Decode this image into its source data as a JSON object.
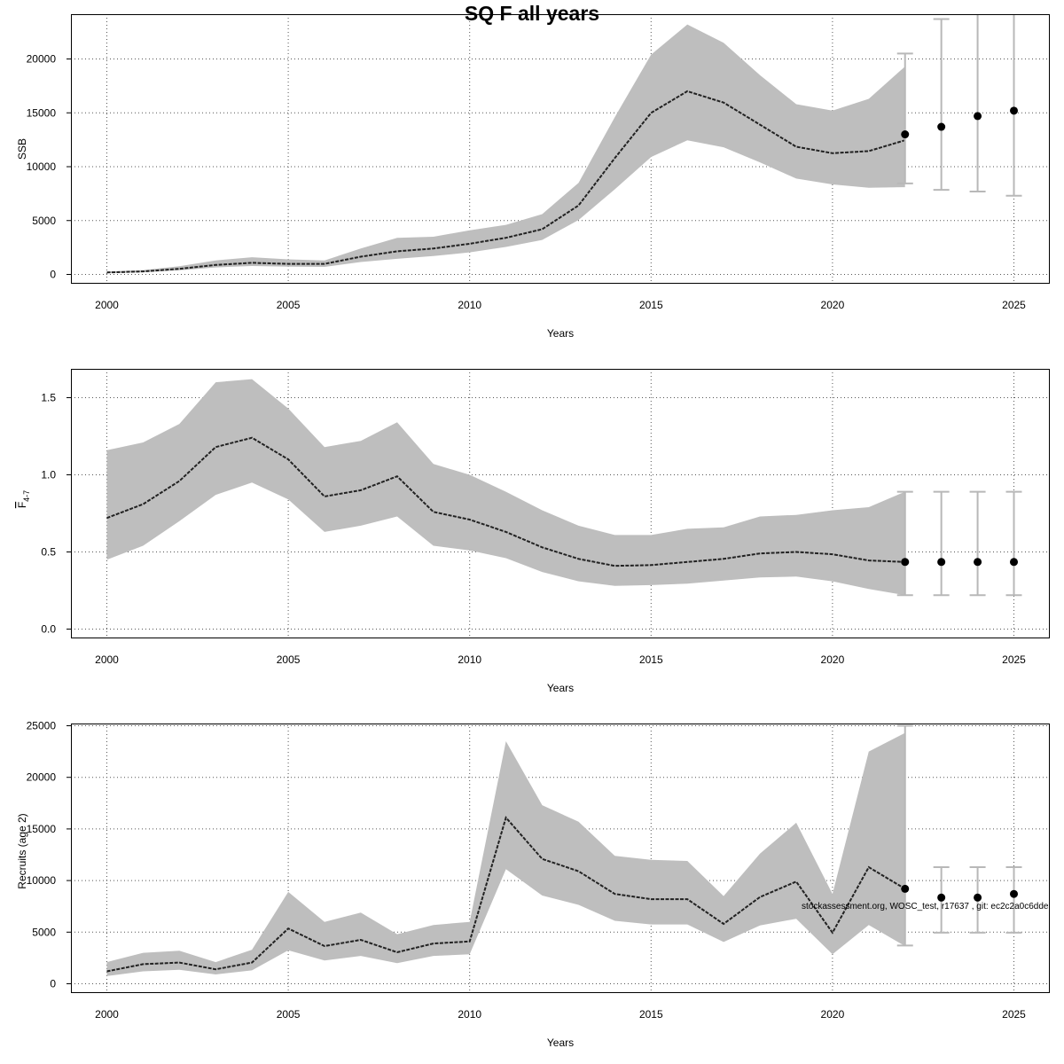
{
  "title": "SQ F all years",
  "credit": "stockassessment.org, WOSC_test, r17637 , git: ec2c2a0c6dde",
  "colors": {
    "band": "#bebebe",
    "line": "#222222",
    "errorbar": "#b8b8b8",
    "point": "#000000",
    "grid": "#555555"
  },
  "chart_data": [
    {
      "type": "area",
      "name": "SSB",
      "xlabel": "Years",
      "ylabel": "SSB",
      "xlim": [
        2000,
        2025
      ],
      "ylim": [
        0,
        24000
      ],
      "xticks": [
        2000,
        2005,
        2010,
        2015,
        2020,
        2025
      ],
      "yticks": [
        0,
        5000,
        10000,
        15000,
        20000
      ],
      "ytick_labels": [
        "0",
        "5000",
        "10000",
        "15000",
        "20000"
      ],
      "series": [
        {
          "role": "estimate",
          "x": [
            2000,
            2001,
            2002,
            2003,
            2004,
            2005,
            2006,
            2007,
            2008,
            2009,
            2010,
            2011,
            2012,
            2013,
            2014,
            2015,
            2016,
            2017,
            2018,
            2019,
            2020,
            2021,
            2022
          ],
          "values": [
            180,
            280,
            520,
            880,
            1080,
            980,
            980,
            1650,
            2150,
            2400,
            2850,
            3400,
            4200,
            6400,
            10800,
            15000,
            17000,
            15950,
            13900,
            11850,
            11250,
            11450,
            12450
          ],
          "lower": [
            120,
            200,
            380,
            650,
            780,
            720,
            700,
            1150,
            1450,
            1700,
            2050,
            2550,
            3200,
            5050,
            7900,
            10900,
            12450,
            11800,
            10400,
            8900,
            8350,
            8050,
            8100
          ],
          "upper": [
            260,
            400,
            760,
            1300,
            1600,
            1400,
            1300,
            2400,
            3400,
            3500,
            4100,
            4600,
            5600,
            8500,
            14600,
            20400,
            23200,
            21500,
            18500,
            15800,
            15200,
            16300,
            19300
          ]
        },
        {
          "role": "forecast",
          "x": [
            2022,
            2023,
            2024,
            2025
          ],
          "values": [
            13000,
            13700,
            14700,
            15200
          ],
          "lower": [
            8450,
            7850,
            7700,
            7300
          ],
          "upper": [
            20500,
            23700,
            25500,
            27000
          ]
        }
      ]
    },
    {
      "type": "area",
      "name": "F",
      "xlabel": "Years",
      "ylabel": "F",
      "ylabel_sub": "4-7",
      "xlim": [
        2000,
        2025
      ],
      "ylim": [
        0,
        1.6
      ],
      "xticks": [
        2000,
        2005,
        2010,
        2015,
        2020,
        2025
      ],
      "yticks": [
        0,
        0.5,
        1.0,
        1.5
      ],
      "ytick_labels": [
        "0.0",
        "0.5",
        "1.0",
        "1.5"
      ],
      "series": [
        {
          "role": "estimate",
          "x": [
            2000,
            2001,
            2002,
            2003,
            2004,
            2005,
            2006,
            2007,
            2008,
            2009,
            2010,
            2011,
            2012,
            2013,
            2014,
            2015,
            2016,
            2017,
            2018,
            2019,
            2020,
            2021,
            2022
          ],
          "values": [
            0.72,
            0.81,
            0.96,
            1.18,
            1.24,
            1.1,
            0.86,
            0.9,
            0.99,
            0.76,
            0.71,
            0.63,
            0.53,
            0.455,
            0.41,
            0.415,
            0.435,
            0.455,
            0.49,
            0.5,
            0.485,
            0.445,
            0.435
          ],
          "lower": [
            0.45,
            0.54,
            0.7,
            0.87,
            0.95,
            0.84,
            0.63,
            0.67,
            0.73,
            0.54,
            0.51,
            0.46,
            0.37,
            0.31,
            0.28,
            0.285,
            0.295,
            0.315,
            0.335,
            0.34,
            0.31,
            0.26,
            0.22
          ],
          "upper": [
            1.16,
            1.21,
            1.33,
            1.6,
            1.62,
            1.43,
            1.18,
            1.22,
            1.34,
            1.07,
            1.0,
            0.89,
            0.77,
            0.67,
            0.61,
            0.61,
            0.65,
            0.66,
            0.73,
            0.74,
            0.77,
            0.79,
            0.89
          ]
        },
        {
          "role": "forecast",
          "x": [
            2022,
            2023,
            2024,
            2025
          ],
          "values": [
            0.435,
            0.435,
            0.435,
            0.435
          ],
          "lower": [
            0.22,
            0.22,
            0.22,
            0.22
          ],
          "upper": [
            0.89,
            0.89,
            0.89,
            0.89
          ]
        }
      ]
    },
    {
      "type": "area",
      "name": "Recruits (age 2)",
      "xlabel": "Years",
      "ylabel": "Recruits (age 2)",
      "xlim": [
        2000,
        2025
      ],
      "ylim": [
        0,
        25000
      ],
      "xticks": [
        2000,
        2005,
        2010,
        2015,
        2020,
        2025
      ],
      "yticks": [
        0,
        5000,
        10000,
        15000,
        20000,
        25000
      ],
      "ytick_labels": [
        "0",
        "5000",
        "10000",
        "15000",
        "20000",
        "25000"
      ],
      "series": [
        {
          "role": "estimate",
          "x": [
            2000,
            2001,
            2002,
            2003,
            2004,
            2005,
            2006,
            2007,
            2008,
            2009,
            2010,
            2011,
            2012,
            2013,
            2014,
            2015,
            2016,
            2017,
            2018,
            2019,
            2020,
            2021,
            2022
          ],
          "values": [
            1200,
            1900,
            2050,
            1400,
            2050,
            5350,
            3650,
            4250,
            3050,
            3900,
            4100,
            16100,
            12100,
            10900,
            8700,
            8200,
            8200,
            5800,
            8400,
            9900,
            4950,
            11300,
            9200
          ],
          "lower": [
            750,
            1200,
            1350,
            900,
            1300,
            3250,
            2250,
            2700,
            2000,
            2700,
            2850,
            11100,
            8550,
            7650,
            6100,
            5750,
            5750,
            4050,
            5650,
            6300,
            2850,
            5700,
            3650
          ],
          "upper": [
            2100,
            3000,
            3200,
            2100,
            3300,
            8900,
            6000,
            6900,
            4800,
            5700,
            6000,
            23500,
            17300,
            15700,
            12400,
            12000,
            11900,
            8500,
            12600,
            15600,
            8700,
            22500,
            24300
          ]
        },
        {
          "role": "forecast",
          "x": [
            2022,
            2023,
            2024,
            2025
          ],
          "values": [
            9200,
            8350,
            8350,
            8700
          ],
          "lower": [
            3700,
            4950,
            4950,
            4950
          ],
          "upper": [
            25000,
            11300,
            11300,
            11300
          ]
        }
      ]
    }
  ]
}
